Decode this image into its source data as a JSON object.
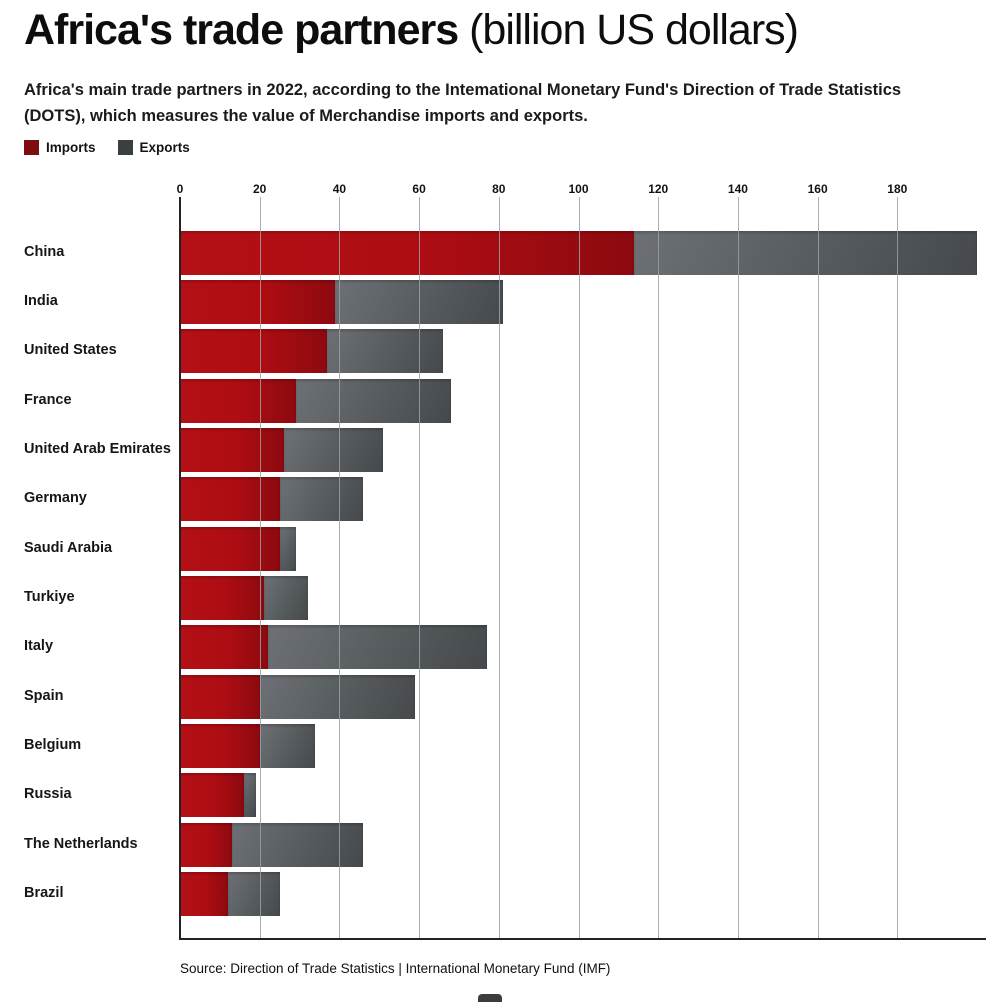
{
  "header": {
    "title_bold": "Africa's trade partners",
    "title_light": " (billion US dollars)",
    "subtitle": "Africa's main trade partners in 2022, according to the Intemational Monetary Fund's Direction of Trade Statistics (DOTS), which measures the value of Merchandise imports and exports."
  },
  "legend": [
    {
      "label": "Imports",
      "color": "#7e0d11"
    },
    {
      "label": "Exports",
      "color": "#3a3f42"
    }
  ],
  "chart_data": {
    "type": "bar",
    "orientation": "horizontal",
    "stacked": true,
    "unit": "billion US dollars",
    "year": "2022",
    "grid": true,
    "legend_position": "top-left",
    "categories": [
      "China",
      "India",
      "United States",
      "France",
      "United Arab Emirates",
      "Germany",
      "Saudi Arabia",
      "Turkiye",
      "Italy",
      "Spain",
      "Belgium",
      "Russia",
      "The Netherlands",
      "Brazil"
    ],
    "series": [
      {
        "name": "Imports",
        "color": "#ad0d12",
        "values": [
          114,
          39,
          37,
          29,
          26,
          25,
          25,
          21,
          22,
          20,
          20,
          16,
          13,
          12
        ]
      },
      {
        "name": "Exports",
        "color": "#565b5e",
        "values": [
          86,
          42,
          29,
          39,
          25,
          21,
          4,
          11,
          55,
          39,
          14,
          3,
          33,
          13
        ]
      }
    ],
    "x_axis": {
      "ticks": [
        0,
        20,
        40,
        60,
        80,
        100,
        120,
        140,
        160,
        180
      ],
      "max": 202
    }
  },
  "footer": {
    "source": "Source: Direction of Trade Statistics | International Monetary Fund (IMF)"
  }
}
